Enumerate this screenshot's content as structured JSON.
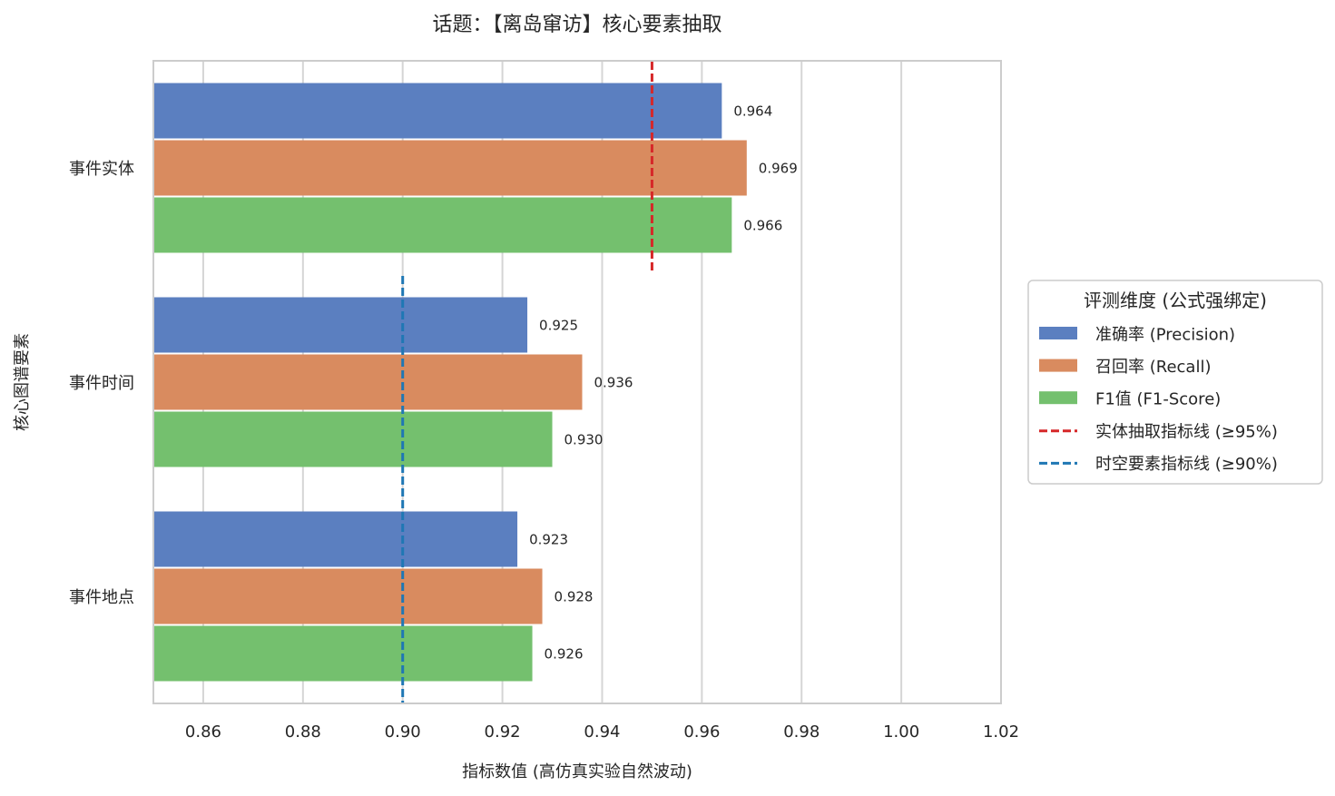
{
  "chart_data": {
    "type": "bar",
    "orientation": "horizontal",
    "title": "话题：【离岛窜访】核心要素抽取",
    "xlabel": "指标数值 (高仿真实验自然波动)",
    "ylabel": "核心图谱要素",
    "xlim": [
      0.85,
      1.02
    ],
    "xticks": [
      "0.86",
      "0.88",
      "0.90",
      "0.92",
      "0.94",
      "0.96",
      "0.98",
      "1.00",
      "1.02"
    ],
    "grid": true,
    "categories": [
      "事件实体",
      "事件时间",
      "事件地点"
    ],
    "series": [
      {
        "name": "准确率 (Precision)",
        "color": "#5b7fc0",
        "values": [
          0.964,
          0.925,
          0.923
        ],
        "labels": [
          "0.964",
          "0.925",
          "0.923"
        ]
      },
      {
        "name": "召回率 (Recall)",
        "color": "#d98b5f",
        "values": [
          0.969,
          0.936,
          0.928
        ],
        "labels": [
          "0.969",
          "0.936",
          "0.928"
        ]
      },
      {
        "name": "F1值 (F1-Score)",
        "color": "#74c06e",
        "values": [
          0.966,
          0.93,
          0.926
        ],
        "labels": [
          "0.966",
          "0.930",
          "0.926"
        ]
      }
    ],
    "reference_lines": [
      {
        "name": "实体抽取指标线 (≥95%)",
        "value": 0.95,
        "color": "#d62728",
        "applies_to": [
          "事件实体"
        ]
      },
      {
        "name": "时空要素指标线 (≥90%)",
        "value": 0.9,
        "color": "#1f77b4",
        "applies_to": [
          "事件时间",
          "事件地点"
        ]
      }
    ],
    "legend": {
      "title": "评测维度 (公式强绑定)",
      "placement": "right-center"
    }
  }
}
